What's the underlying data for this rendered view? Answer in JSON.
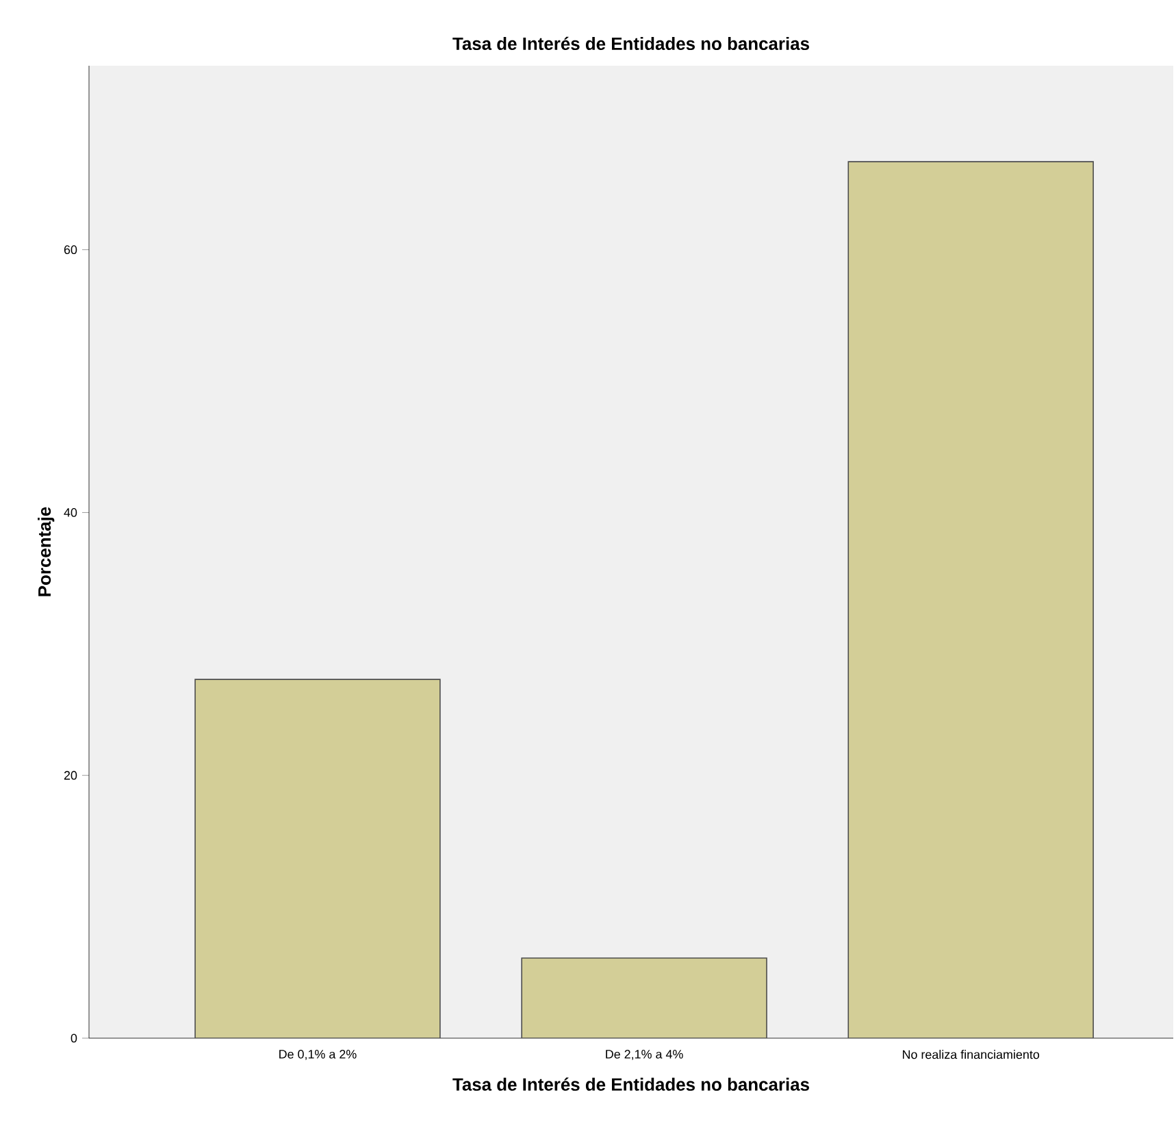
{
  "chart_data": {
    "type": "bar",
    "title": "Tasa de Interés de Entidades no bancarias",
    "xlabel": "Tasa de Interés de Entidades no bancarias",
    "ylabel": "Porcentaje",
    "categories": [
      "De 0,1% a 2%",
      "De 2,1% a 4%",
      "No realiza financiamiento"
    ],
    "values": [
      27.3,
      6.1,
      66.7
    ],
    "color": "#d3ce97",
    "ylim": [
      0,
      74
    ],
    "yticks": [
      0,
      20,
      40,
      60
    ]
  }
}
